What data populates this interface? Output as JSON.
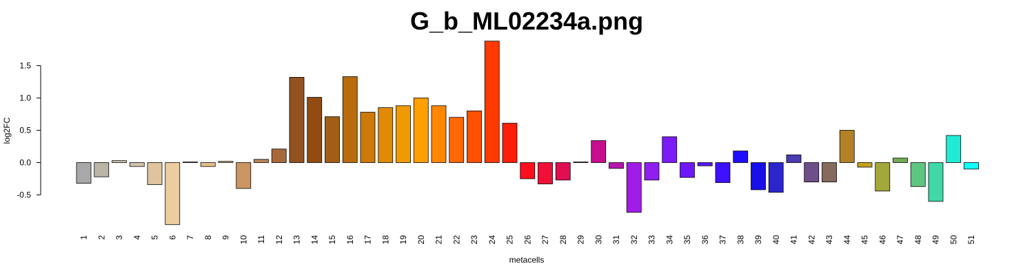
{
  "chart_data": {
    "type": "bar",
    "title": "G_b_ML02234a.png",
    "xlabel": "metacells",
    "ylabel": "log2FC",
    "yticks": [
      "-0.5",
      "0.0",
      "0.5",
      "1.0",
      "1.5"
    ],
    "grid": false,
    "categories": [
      "1",
      "2",
      "3",
      "4",
      "5",
      "6",
      "7",
      "8",
      "9",
      "10",
      "11",
      "12",
      "13",
      "14",
      "15",
      "16",
      "17",
      "18",
      "19",
      "20",
      "21",
      "22",
      "23",
      "24",
      "25",
      "26",
      "27",
      "28",
      "29",
      "30",
      "31",
      "32",
      "33",
      "34",
      "35",
      "36",
      "37",
      "38",
      "39",
      "40",
      "41",
      "42",
      "43",
      "44",
      "45",
      "46",
      "47",
      "48",
      "49",
      "50",
      "51"
    ],
    "values": [
      -0.32,
      -0.22,
      0.03,
      -0.06,
      -0.34,
      -0.96,
      0.01,
      -0.06,
      0.02,
      -0.4,
      0.05,
      0.21,
      1.32,
      1.01,
      0.71,
      1.33,
      0.78,
      0.85,
      0.88,
      1.0,
      0.88,
      0.7,
      0.8,
      1.88,
      0.61,
      -0.25,
      -0.33,
      -0.27,
      0.01,
      0.34,
      -0.09,
      -0.77,
      -0.27,
      0.4,
      -0.23,
      -0.05,
      -0.31,
      0.18,
      -0.42,
      -0.46,
      0.12,
      -0.3,
      -0.3,
      0.5,
      -0.07,
      -0.44,
      0.07,
      -0.37,
      -0.6,
      0.42,
      -0.1
    ],
    "colors": [
      "#a8a8a8",
      "#bbb5a8",
      "#d4c8b2",
      "#d4c3ae",
      "#e0c49f",
      "#eccd9f",
      "#d9b88a",
      "#e6bf8b",
      "#d8b787",
      "#cc9662",
      "#bb8656",
      "#a8693a",
      "#93521f",
      "#924b12",
      "#a25e14",
      "#b96c0d",
      "#cd7a09",
      "#e08a05",
      "#f09a02",
      "#ff9f00",
      "#ff8700",
      "#ff6900",
      "#ff5000",
      "#ff3a00",
      "#ff1e07",
      "#ff0e1e",
      "#f10f36",
      "#e20e52",
      "#d50d70",
      "#c60e8f",
      "#b614ad",
      "#a11ce6",
      "#901ef0",
      "#7c1bf7",
      "#6e18fa",
      "#5a14fc",
      "#3f10fd",
      "#1f0efe",
      "#170ee8",
      "#2d25cc",
      "#4b3bb0",
      "#6e4f8a",
      "#866a5e",
      "#b38226",
      "#c8a21e",
      "#a4a83a",
      "#73ad53",
      "#5ec681",
      "#40d8a8",
      "#20ecd6",
      "#10ffff"
    ]
  }
}
